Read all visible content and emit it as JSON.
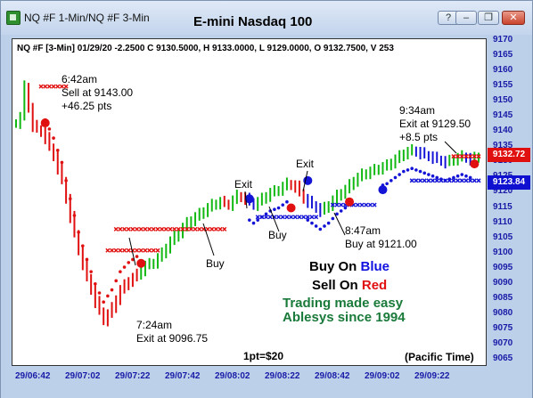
{
  "window": {
    "tab_label": "NQ #F 1-Min/NQ #F 3-Min",
    "chart_title": "E-mini Nasdaq 100",
    "controls": {
      "help": "?",
      "minimize": "–",
      "restore": "❐",
      "close": "✕"
    }
  },
  "info_line": "NQ #F [3-Min] 01/29/20  -2.2500 C 9130.5000, H 9133.0000, L 9129.0000, O 9132.7500, V 253",
  "price_tags": {
    "last": "9132.72",
    "stop": "9123.84",
    "last_color": "#e01010",
    "stop_color": "#1010d0"
  },
  "annotations": {
    "sell_open": [
      "6:42am",
      "Sell at 9143.00",
      "+46.25 pts"
    ],
    "exit_low": [
      "7:24am",
      "Exit at 9096.75"
    ],
    "buy_1": "Buy",
    "exit_1": "Exit",
    "buy_2": "Buy",
    "exit_2": "Exit",
    "buy_3": [
      "8:47am",
      "Buy at 9121.00"
    ],
    "exit_3": [
      "9:34am",
      "Exit at 9129.50",
      "+8.5 pts"
    ],
    "point_value": "1pt=$20",
    "timezone": "(Pacific Time)"
  },
  "legend": {
    "buy_prefix": "Buy On ",
    "buy_word": "Blue",
    "sell_prefix": "Sell On ",
    "sell_word": "Red",
    "tagline": "Trading made easy",
    "company": "Ablesys since 1994",
    "blue": "#1212e0",
    "red": "#e01010",
    "green": "#1a7a3a"
  },
  "chart_data": {
    "type": "candlestick",
    "title": "E-mini Nasdaq 100",
    "y_ticks": [
      9170,
      9165,
      9160,
      9155,
      9150,
      9145,
      9140,
      9135,
      9130,
      9125,
      9120,
      9115,
      9110,
      9105,
      9100,
      9095,
      9090,
      9085,
      9080,
      9075,
      9070,
      9065
    ],
    "ylim": [
      9065,
      9170
    ],
    "x_ticks": [
      "29/06:42",
      "29/07:02",
      "29/07:22",
      "29/07:42",
      "29/08:02",
      "29/08:22",
      "29/08:42",
      "29/09:02",
      "29/09:22"
    ],
    "price_path": [
      [
        0,
        9143
      ],
      [
        1,
        9145
      ],
      [
        2,
        9155
      ],
      [
        3,
        9148
      ],
      [
        4,
        9142
      ],
      [
        5,
        9141
      ],
      [
        6,
        9140
      ],
      [
        7,
        9138
      ],
      [
        9,
        9132
      ],
      [
        11,
        9124
      ],
      [
        13,
        9112
      ],
      [
        15,
        9101
      ],
      [
        17,
        9092
      ],
      [
        19,
        9084
      ],
      [
        21,
        9078
      ],
      [
        23,
        9082
      ],
      [
        25,
        9088
      ],
      [
        27,
        9091
      ],
      [
        29,
        9093
      ],
      [
        31,
        9096
      ],
      [
        33,
        9097
      ],
      [
        35,
        9100
      ],
      [
        37,
        9104
      ],
      [
        39,
        9107
      ],
      [
        41,
        9110
      ],
      [
        43,
        9112
      ],
      [
        45,
        9114
      ],
      [
        47,
        9116
      ],
      [
        49,
        9117
      ],
      [
        51,
        9116
      ],
      [
        53,
        9119
      ],
      [
        55,
        9118
      ],
      [
        57,
        9116
      ],
      [
        59,
        9118
      ],
      [
        61,
        9120
      ],
      [
        63,
        9121
      ],
      [
        65,
        9123
      ],
      [
        67,
        9122
      ],
      [
        69,
        9118
      ],
      [
        71,
        9116
      ],
      [
        73,
        9114
      ],
      [
        75,
        9116
      ],
      [
        77,
        9119
      ],
      [
        79,
        9121
      ],
      [
        81,
        9124
      ],
      [
        83,
        9126
      ],
      [
        85,
        9127
      ],
      [
        87,
        9128
      ],
      [
        89,
        9129
      ],
      [
        91,
        9131
      ],
      [
        93,
        9133
      ],
      [
        95,
        9134
      ],
      [
        97,
        9133
      ],
      [
        99,
        9132
      ],
      [
        101,
        9131
      ],
      [
        103,
        9130
      ],
      [
        105,
        9131
      ],
      [
        107,
        9132
      ],
      [
        109,
        9131
      ],
      [
        111,
        9132
      ]
    ],
    "signals": [
      {
        "type": "sell",
        "bar": 7,
        "price": 9143.0
      },
      {
        "type": "exit",
        "bar": 30,
        "price": 9096.75
      },
      {
        "type": "buy",
        "bar": 56,
        "price": 9118
      },
      {
        "type": "exit",
        "bar": 66,
        "price": 9115
      },
      {
        "type": "buy",
        "bar": 70,
        "price": 9124
      },
      {
        "type": "exit",
        "bar": 80,
        "price": 9117
      },
      {
        "type": "buy",
        "bar": 88,
        "price": 9121.0
      },
      {
        "type": "exit",
        "bar": 110,
        "price": 9129.5
      }
    ],
    "bars_total": 112
  }
}
